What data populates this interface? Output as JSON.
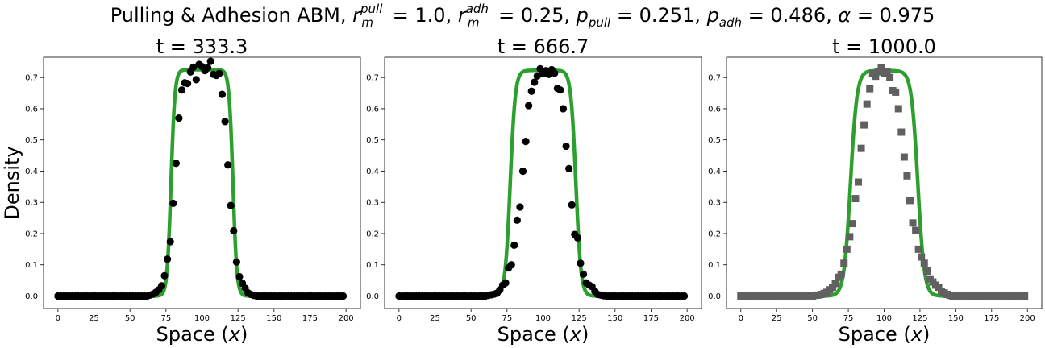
{
  "figure": {
    "title_parts": {
      "prefix": "Pulling & Adhesion ABM, ",
      "r": "r",
      "r_pull_sup": "pull",
      "r_m_sub": "m",
      "r_pull_val": " = 1.0, ",
      "r_adh_sup": "adh",
      "r_adh_val": " = 0.25, ",
      "p": "p",
      "p_pull_sub": "pull",
      "p_pull_val": " = 0.251, ",
      "p_adh_sub": "adh",
      "p_adh_val": " = 0.486, ",
      "alpha": "α",
      "alpha_val": " = 0.975"
    },
    "ylabel": "Density",
    "xlabel_text": "Space (",
    "xlabel_var": "x",
    "xlabel_close": ")"
  },
  "colors": {
    "model_line": "#2ca02c",
    "abm_black": "#000000",
    "abm_gray": "#606060"
  },
  "chart_data": [
    {
      "type": "line",
      "title": "t = 333.3",
      "xlim": [
        -10,
        210
      ],
      "ylim": [
        -0.04,
        0.765
      ],
      "xticks": [
        0,
        25,
        50,
        75,
        100,
        125,
        150,
        175,
        200
      ],
      "yticks": [
        0.0,
        0.1,
        0.2,
        0.3,
        0.4,
        0.5,
        0.6,
        0.7
      ],
      "marker": "circle",
      "marker_color": "#000000",
      "model": {
        "center": 100,
        "half_width": 21.5,
        "steepness": 2.7,
        "peak": 0.725
      },
      "abm_x": [
        0,
        2,
        4,
        6,
        8,
        10,
        12,
        14,
        16,
        18,
        20,
        22,
        24,
        26,
        28,
        30,
        32,
        34,
        36,
        38,
        40,
        42,
        44,
        46,
        48,
        50,
        52,
        54,
        56,
        58,
        60,
        62,
        64,
        66,
        68,
        70,
        72,
        74,
        76,
        78,
        80,
        82,
        84,
        86,
        88,
        90,
        92,
        94,
        96,
        98,
        100,
        102,
        104,
        106,
        108,
        110,
        112,
        114,
        116,
        118,
        120,
        122,
        124,
        126,
        128,
        130,
        132,
        134,
        136,
        138,
        140,
        142,
        144,
        146,
        148,
        150,
        152,
        154,
        156,
        158,
        160,
        162,
        164,
        166,
        168,
        170,
        172,
        174,
        176,
        178,
        180,
        182,
        184,
        186,
        188,
        190,
        192,
        194,
        196,
        198
      ],
      "abm_y": [
        0,
        0,
        0,
        0,
        0,
        0,
        0,
        0,
        0,
        0,
        0,
        0,
        0,
        0,
        0,
        0,
        0,
        0,
        0,
        0,
        0,
        0,
        0,
        0,
        0,
        0,
        0,
        0,
        0,
        0,
        0,
        0,
        0.003,
        0.006,
        0.012,
        0.02,
        0.033,
        0.065,
        0.118,
        0.174,
        0.297,
        0.425,
        0.57,
        0.66,
        0.683,
        0.681,
        0.718,
        0.733,
        0.693,
        0.742,
        0.735,
        0.722,
        0.731,
        0.752,
        0.71,
        0.707,
        0.713,
        0.646,
        0.559,
        0.42,
        0.29,
        0.209,
        0.109,
        0.062,
        0.041,
        0.025,
        0.01,
        0.005,
        0.002,
        0,
        0,
        0,
        0,
        0,
        0,
        0,
        0,
        0,
        0,
        0,
        0,
        0,
        0,
        0,
        0,
        0,
        0,
        0,
        0,
        0,
        0,
        0,
        0,
        0,
        0,
        0,
        0,
        0,
        0,
        0
      ]
    },
    {
      "type": "line",
      "title": "t = 666.7",
      "xlim": [
        -10,
        210
      ],
      "ylim": [
        -0.04,
        0.765
      ],
      "xticks": [
        0,
        25,
        50,
        75,
        100,
        125,
        150,
        175,
        200
      ],
      "yticks": [
        0.0,
        0.1,
        0.2,
        0.3,
        0.4,
        0.5,
        0.6,
        0.7
      ],
      "marker": "circle",
      "marker_color": "#000000",
      "model": {
        "center": 100,
        "half_width": 22.8,
        "steepness": 3.5,
        "peak": 0.723
      },
      "abm_x": [
        0,
        2,
        4,
        6,
        8,
        10,
        12,
        14,
        16,
        18,
        20,
        22,
        24,
        26,
        28,
        30,
        32,
        34,
        36,
        38,
        40,
        42,
        44,
        46,
        48,
        50,
        52,
        54,
        56,
        58,
        60,
        62,
        64,
        66,
        68,
        70,
        72,
        74,
        76,
        78,
        80,
        82,
        84,
        86,
        88,
        90,
        92,
        94,
        96,
        98,
        100,
        102,
        104,
        106,
        108,
        110,
        112,
        114,
        116,
        118,
        120,
        122,
        124,
        126,
        128,
        130,
        132,
        134,
        136,
        138,
        140,
        142,
        144,
        146,
        148,
        150,
        152,
        154,
        156,
        158,
        160,
        162,
        164,
        166,
        168,
        170,
        172,
        174,
        176,
        178,
        180,
        182,
        184,
        186,
        188,
        190,
        192,
        194,
        196,
        198
      ],
      "abm_y": [
        0,
        0,
        0,
        0,
        0,
        0,
        0,
        0,
        0,
        0,
        0,
        0,
        0,
        0,
        0,
        0,
        0,
        0,
        0,
        0,
        0,
        0,
        0,
        0,
        0,
        0,
        0,
        0,
        0,
        0,
        0,
        0.002,
        0.004,
        0.006,
        0.009,
        0.02,
        0.035,
        0.042,
        0.09,
        0.1,
        0.163,
        0.243,
        0.285,
        0.4,
        0.495,
        0.61,
        0.656,
        0.685,
        0.705,
        0.728,
        0.712,
        0.722,
        0.71,
        0.725,
        0.714,
        0.665,
        0.66,
        0.6,
        0.48,
        0.408,
        0.292,
        0.197,
        0.186,
        0.105,
        0.07,
        0.042,
        0.035,
        0.03,
        0.015,
        0.005,
        0.003,
        0.001,
        0,
        0,
        0,
        0,
        0,
        0,
        0,
        0,
        0,
        0,
        0,
        0,
        0,
        0,
        0,
        0,
        0,
        0,
        0,
        0,
        0,
        0,
        0,
        0,
        0,
        0,
        0,
        0
      ]
    },
    {
      "type": "line",
      "title": "t = 1000.0",
      "xlim": [
        -10,
        210
      ],
      "ylim": [
        -0.04,
        0.765
      ],
      "xticks": [
        0,
        25,
        50,
        75,
        100,
        125,
        150,
        175,
        200
      ],
      "yticks": [
        0.0,
        0.1,
        0.2,
        0.3,
        0.4,
        0.5,
        0.6,
        0.7
      ],
      "marker": "square",
      "marker_color": "#606060",
      "model": {
        "center": 100,
        "half_width": 23.5,
        "steepness": 4.5,
        "peak": 0.722
      },
      "abm_x": [
        0,
        2,
        4,
        6,
        8,
        10,
        12,
        14,
        16,
        18,
        20,
        22,
        24,
        26,
        28,
        30,
        32,
        34,
        36,
        38,
        40,
        42,
        44,
        46,
        48,
        50,
        52,
        54,
        56,
        58,
        60,
        62,
        64,
        66,
        68,
        70,
        72,
        74,
        76,
        78,
        80,
        82,
        84,
        86,
        88,
        90,
        92,
        94,
        96,
        98,
        100,
        102,
        104,
        106,
        108,
        110,
        112,
        114,
        116,
        118,
        120,
        122,
        124,
        126,
        128,
        130,
        132,
        134,
        136,
        138,
        140,
        142,
        144,
        146,
        148,
        150,
        152,
        154,
        156,
        158,
        160,
        162,
        164,
        166,
        168,
        170,
        172,
        174,
        176,
        178,
        180,
        182,
        184,
        186,
        188,
        190,
        192,
        194,
        196,
        198
      ],
      "abm_y": [
        0,
        0,
        0,
        0,
        0,
        0,
        0,
        0,
        0,
        0,
        0,
        0,
        0,
        0,
        0,
        0,
        0,
        0,
        0,
        0,
        0,
        0,
        0,
        0,
        0,
        0,
        0.002,
        0.003,
        0.005,
        0.008,
        0.012,
        0.02,
        0.028,
        0.04,
        0.06,
        0.07,
        0.105,
        0.15,
        0.19,
        0.232,
        0.312,
        0.365,
        0.473,
        0.548,
        0.615,
        0.664,
        0.713,
        0.704,
        0.718,
        0.732,
        0.714,
        0.718,
        0.7,
        0.658,
        0.653,
        0.6,
        0.525,
        0.445,
        0.385,
        0.306,
        0.234,
        0.21,
        0.15,
        0.125,
        0.105,
        0.08,
        0.055,
        0.045,
        0.035,
        0.028,
        0.015,
        0.01,
        0.005,
        0.002,
        0,
        0,
        0,
        0,
        0,
        0,
        0,
        0,
        0,
        0,
        0,
        0,
        0,
        0,
        0,
        0,
        0,
        0,
        0,
        0,
        0,
        0,
        0,
        0,
        0,
        0
      ]
    }
  ]
}
